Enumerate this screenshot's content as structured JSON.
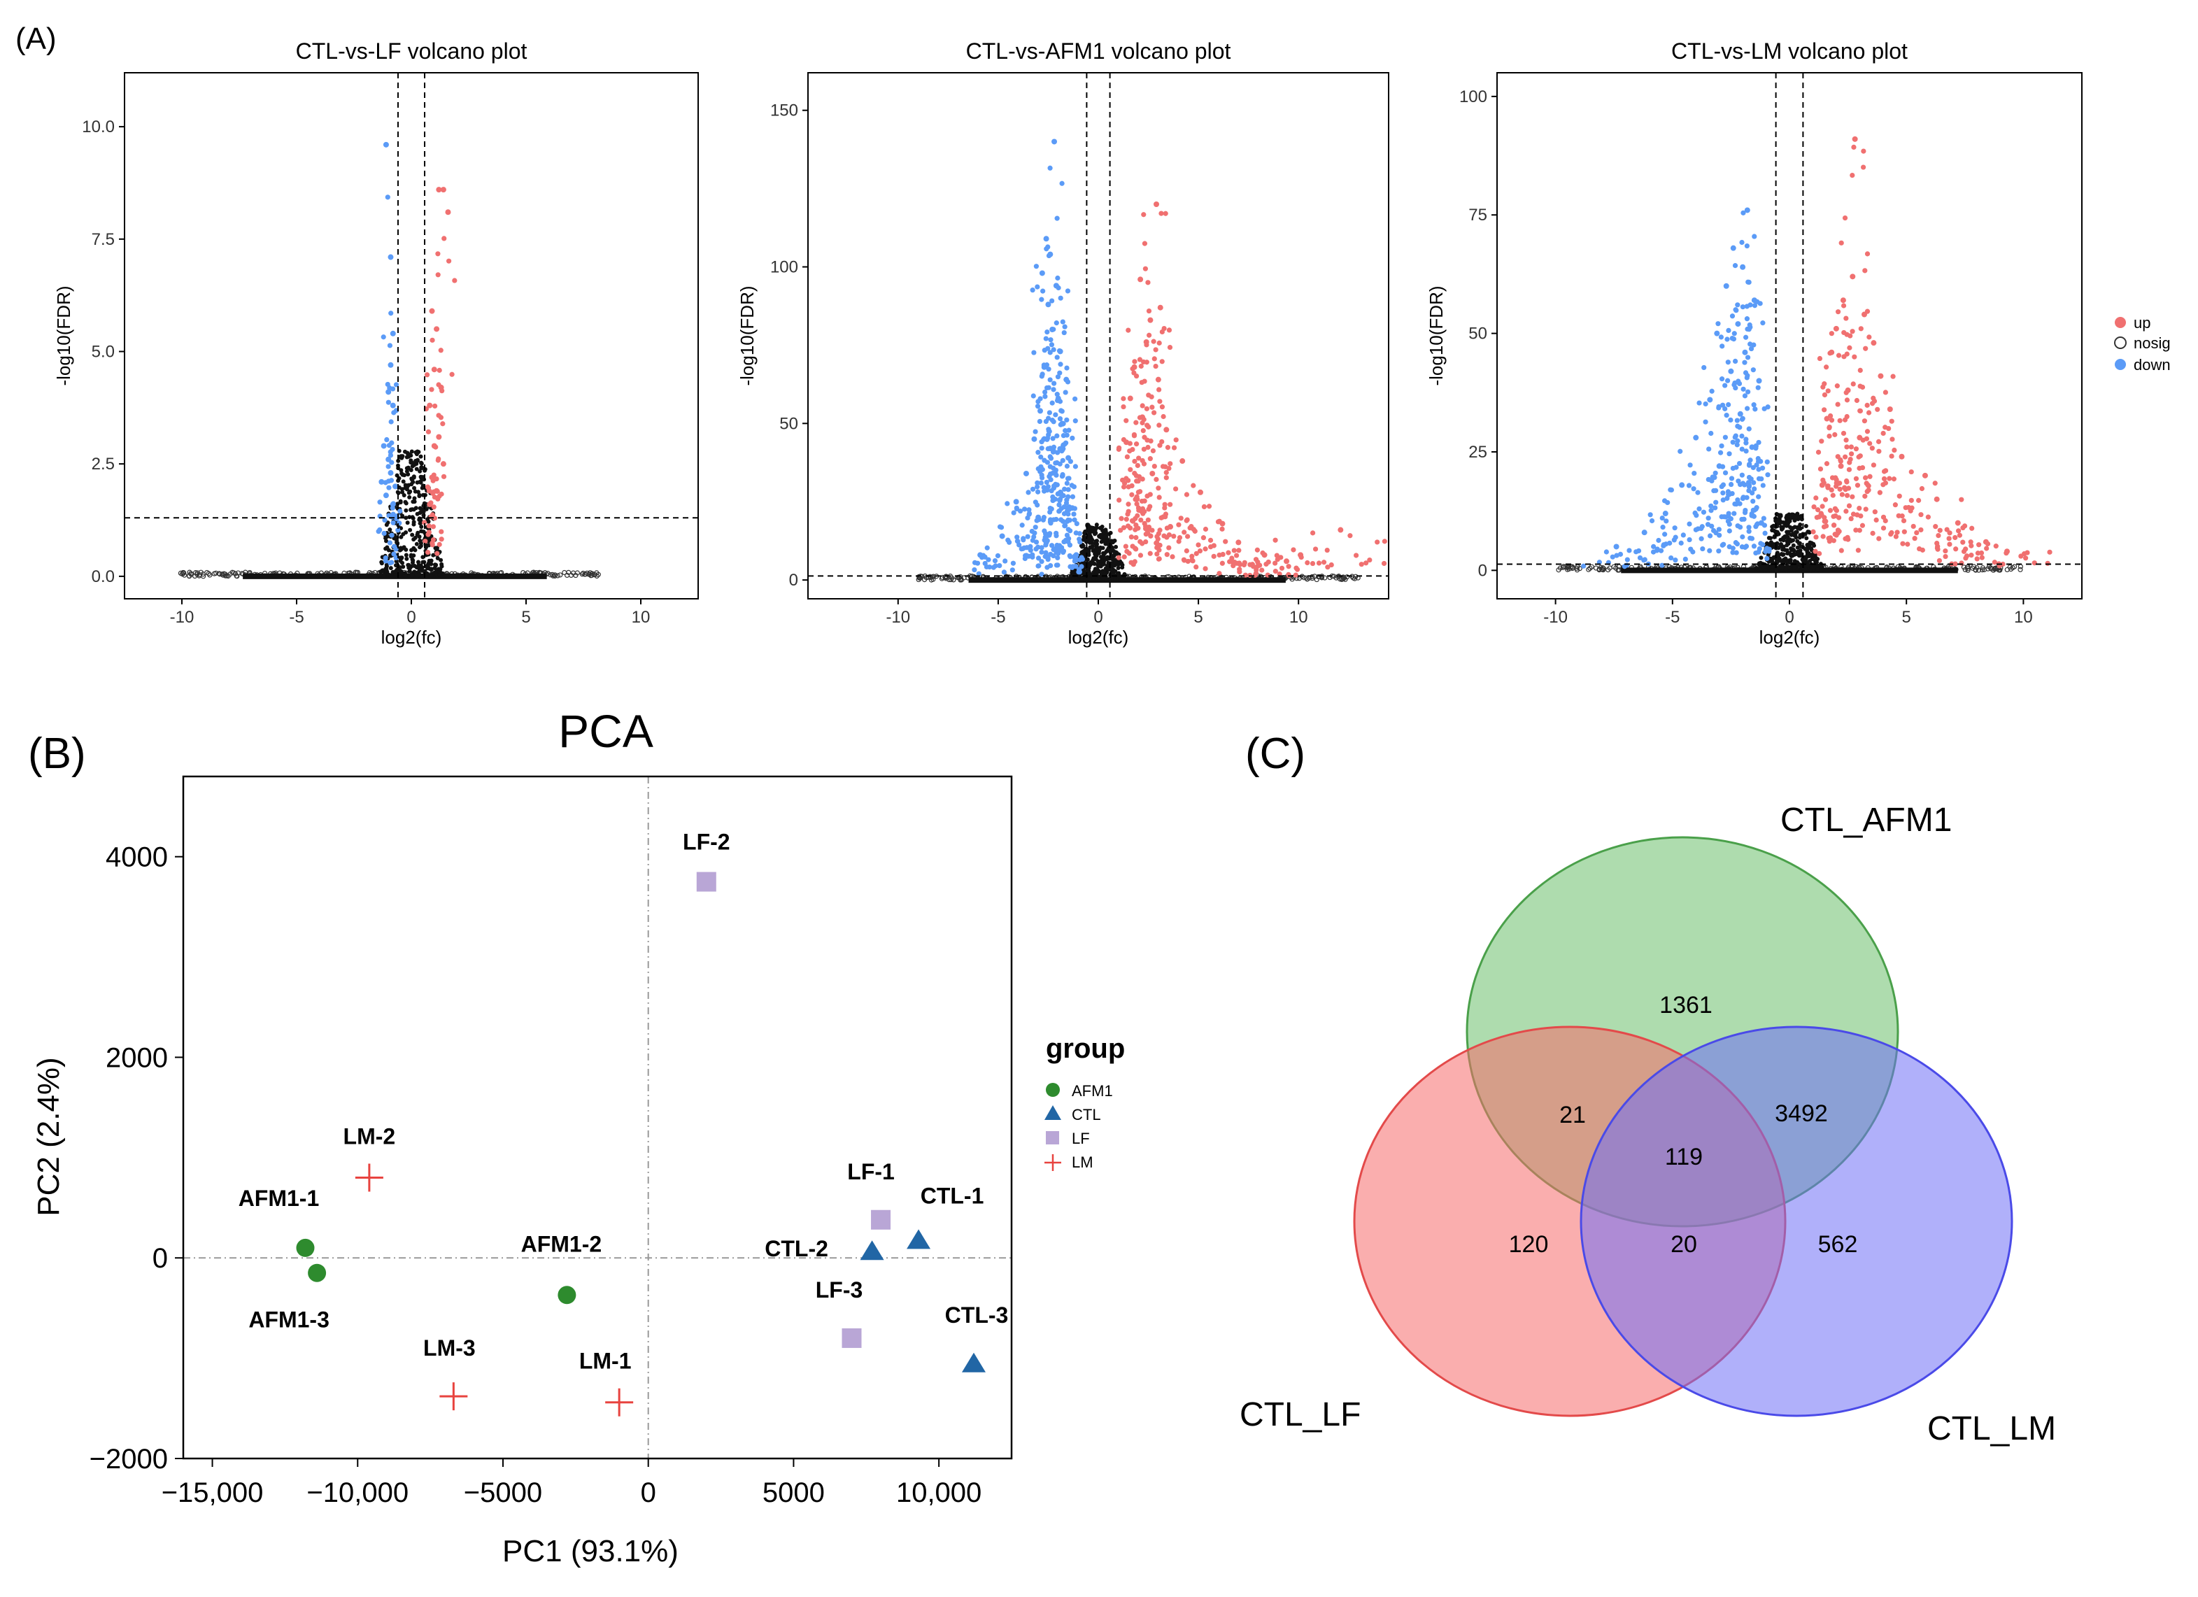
{
  "panel_labels": {
    "a": "(A)",
    "b": "(B)",
    "c": "(C)"
  },
  "colors": {
    "up": "#f07070",
    "down": "#5b9bf7",
    "nosig": "#000000",
    "afm1": "#2e8b2e",
    "ctl": "#2166a5",
    "lf": "#b9a6d6",
    "lm": "#e8433f",
    "venn_afm1": "#8fcf8f",
    "venn_lf": "#f56b6b",
    "venn_lm": "#6f6ff5"
  },
  "volcano_legend": {
    "up": "up",
    "nosig": "nosig",
    "down": "down"
  },
  "chart_data": [
    {
      "type": "scatter",
      "id": "volcano-lf",
      "title": "CTL-vs-LF volcano plot",
      "xlabel": "log2(fc)",
      "ylabel": "-log10(FDR)",
      "xlim": [
        -12.5,
        12.5
      ],
      "ylim": [
        -0.5,
        11.2
      ],
      "xticks": [
        -10,
        -5,
        0,
        5,
        10
      ],
      "yticks": [
        0.0,
        2.5,
        5.0,
        7.5,
        10.0
      ],
      "ytick_labels": [
        "0.0",
        "2.5",
        "5.0",
        "7.5",
        "10.0"
      ],
      "fc_threshold": [
        -0.58,
        0.58
      ],
      "fdr_threshold": 1.3,
      "nosig_xrange": [
        -10.2,
        8.2
      ],
      "nosig_peak": 2.8,
      "down_points": [
        [
          -1.1,
          9.6
        ],
        [
          -0.9,
          7.1
        ],
        [
          -0.8,
          5.4
        ],
        [
          -0.9,
          4.7
        ],
        [
          -1.0,
          4.1
        ],
        [
          -0.8,
          3.8
        ],
        [
          -1.2,
          2.9
        ],
        [
          -1.0,
          2.6
        ],
        [
          -0.9,
          2.3
        ],
        [
          -1.3,
          2.1
        ],
        [
          -0.7,
          2.0
        ],
        [
          -1.1,
          1.8
        ],
        [
          -0.8,
          1.6
        ]
      ],
      "up_points": [
        [
          1.2,
          8.6
        ],
        [
          1.4,
          8.6
        ],
        [
          1.6,
          8.1
        ],
        [
          0.9,
          5.9
        ],
        [
          1.1,
          5.5
        ],
        [
          1.0,
          4.6
        ],
        [
          1.3,
          4.2
        ],
        [
          0.8,
          3.8
        ],
        [
          1.2,
          3.1
        ],
        [
          1.0,
          2.9
        ],
        [
          1.4,
          2.5
        ],
        [
          0.9,
          2.2
        ],
        [
          1.1,
          1.9
        ],
        [
          0.8,
          1.6
        ]
      ]
    },
    {
      "type": "scatter",
      "id": "volcano-afm1",
      "title": "CTL-vs-AFM1 volcano plot",
      "xlabel": "log2(fc)",
      "ylabel": "-log10(FDR)",
      "xlim": [
        -14.5,
        14.5
      ],
      "ylim": [
        -6,
        162
      ],
      "xticks": [
        -10,
        -5,
        0,
        5,
        10
      ],
      "yticks": [
        0,
        50,
        100,
        150
      ],
      "ytick_labels": [
        "0",
        "50",
        "100",
        "150"
      ],
      "fc_threshold": [
        -0.58,
        0.58
      ],
      "fdr_threshold": 1.3,
      "nosig_xrange": [
        -9,
        13
      ],
      "nosig_peak": 18,
      "down_points": [
        [
          -2.2,
          140
        ],
        [
          -2.6,
          109
        ],
        [
          -2.4,
          104
        ],
        [
          -2.8,
          98
        ],
        [
          -2.1,
          94
        ],
        [
          -2.5,
          88
        ],
        [
          -2.3,
          80
        ],
        [
          -1.9,
          73
        ],
        [
          -2.7,
          68
        ],
        [
          -1.6,
          64
        ],
        [
          -2.0,
          58
        ],
        [
          -2.9,
          54
        ],
        [
          -1.8,
          50
        ],
        [
          -3.2,
          45
        ],
        [
          -2.4,
          42
        ],
        [
          -1.5,
          39
        ],
        [
          -3.6,
          34
        ],
        [
          -2.2,
          30
        ],
        [
          -4.1,
          25
        ],
        [
          -1.3,
          23
        ],
        [
          -3.0,
          20
        ],
        [
          -4.8,
          14
        ],
        [
          -2.6,
          12
        ],
        [
          -5.9,
          8
        ],
        [
          -1.1,
          8
        ]
      ],
      "up_points": [
        [
          2.9,
          120
        ],
        [
          2.1,
          96
        ],
        [
          3.1,
          87
        ],
        [
          2.6,
          83
        ],
        [
          2.4,
          76
        ],
        [
          1.8,
          68
        ],
        [
          3.0,
          64
        ],
        [
          1.6,
          58
        ],
        [
          2.2,
          52
        ],
        [
          3.4,
          48
        ],
        [
          1.4,
          44
        ],
        [
          4.2,
          38
        ],
        [
          2.7,
          34
        ],
        [
          5.1,
          28
        ],
        [
          1.9,
          26
        ],
        [
          6.2,
          18
        ],
        [
          3.6,
          17
        ],
        [
          7.0,
          12
        ],
        [
          8.3,
          8
        ],
        [
          12.1,
          16
        ],
        [
          10.1,
          8
        ],
        [
          9.4,
          6
        ]
      ]
    },
    {
      "type": "scatter",
      "id": "volcano-lm",
      "title": "CTL-vs-LM volcano plot",
      "xlabel": "log2(fc)",
      "ylabel": "-log10(FDR)",
      "xlim": [
        -12.5,
        12.5
      ],
      "ylim": [
        -6,
        105
      ],
      "xticks": [
        -10,
        -5,
        0,
        5,
        10
      ],
      "yticks": [
        0,
        25,
        50,
        75,
        100
      ],
      "ytick_labels": [
        "0",
        "25",
        "50",
        "75",
        "100"
      ],
      "fc_threshold": [
        -0.58,
        0.58
      ],
      "fdr_threshold": 1.3,
      "nosig_xrange": [
        -10,
        10
      ],
      "nosig_peak": 12,
      "down_points": [
        [
          -1.8,
          76
        ],
        [
          -2.4,
          68
        ],
        [
          -2.0,
          64
        ],
        [
          -2.7,
          60
        ],
        [
          -1.5,
          57
        ],
        [
          -2.2,
          52
        ],
        [
          -3.1,
          50
        ],
        [
          -1.9,
          46
        ],
        [
          -2.5,
          42
        ],
        [
          -1.3,
          40
        ],
        [
          -3.4,
          36
        ],
        [
          -2.1,
          33
        ],
        [
          -4.0,
          28
        ],
        [
          -1.6,
          26
        ],
        [
          -3.0,
          22
        ],
        [
          -4.6,
          18
        ],
        [
          -2.6,
          16
        ],
        [
          -5.3,
          12
        ],
        [
          -6.2,
          8
        ],
        [
          -7.4,
          5
        ],
        [
          -1.2,
          10
        ]
      ],
      "up_points": [
        [
          2.8,
          91
        ],
        [
          2.7,
          62
        ],
        [
          2.3,
          57
        ],
        [
          3.2,
          54
        ],
        [
          2.0,
          51
        ],
        [
          3.6,
          48
        ],
        [
          1.8,
          46
        ],
        [
          3.9,
          41
        ],
        [
          2.5,
          38
        ],
        [
          4.3,
          34
        ],
        [
          1.6,
          32
        ],
        [
          5.8,
          20
        ],
        [
          3.0,
          28
        ],
        [
          4.8,
          24
        ],
        [
          2.2,
          22
        ],
        [
          6.3,
          15
        ],
        [
          7.2,
          10
        ],
        [
          8.4,
          6
        ],
        [
          9.3,
          4
        ],
        [
          1.4,
          18
        ]
      ]
    },
    {
      "type": "scatter",
      "id": "pca",
      "title": "PCA",
      "xlabel": "PC1 (93.1%)",
      "ylabel": "PC2 (2.4%)",
      "xlim": [
        -16000,
        12500
      ],
      "ylim": [
        -2000,
        4800
      ],
      "xticks": [
        -15000,
        -10000,
        -5000,
        0,
        5000,
        10000
      ],
      "xtick_labels": [
        "−15,000",
        "−10,000",
        "−5000",
        "0",
        "5000",
        "10,000"
      ],
      "yticks": [
        -2000,
        0,
        2000,
        4000
      ],
      "ytick_labels": [
        "−2000",
        "0",
        "2000",
        "4000"
      ],
      "legend_title": "group",
      "groups": [
        "AFM1",
        "CTL",
        "LF",
        "LM"
      ],
      "points": [
        {
          "label": "AFM1-1",
          "group": "AFM1",
          "x": -11800,
          "y": 100
        },
        {
          "label": "AFM1-2",
          "group": "AFM1",
          "x": -2800,
          "y": -370
        },
        {
          "label": "AFM1-3",
          "group": "AFM1",
          "x": -11400,
          "y": -150
        },
        {
          "label": "CTL-1",
          "group": "CTL",
          "x": 9300,
          "y": 180
        },
        {
          "label": "CTL-2",
          "group": "CTL",
          "x": 7700,
          "y": 70
        },
        {
          "label": "CTL-3",
          "group": "CTL",
          "x": 11200,
          "y": -1050
        },
        {
          "label": "LF-1",
          "group": "LF",
          "x": 8000,
          "y": 380
        },
        {
          "label": "LF-2",
          "group": "LF",
          "x": 2000,
          "y": 3750
        },
        {
          "label": "LF-3",
          "group": "LF",
          "x": 7000,
          "y": -800
        },
        {
          "label": "LM-1",
          "group": "LM",
          "x": -1000,
          "y": -1440
        },
        {
          "label": "LM-2",
          "group": "LM",
          "x": -9600,
          "y": 800
        },
        {
          "label": "LM-3",
          "group": "LM",
          "x": -6700,
          "y": -1380
        }
      ]
    },
    {
      "type": "venn",
      "id": "venn",
      "sets": [
        "CTL_AFM1",
        "CTL_LF",
        "CTL_LM"
      ],
      "regions": [
        {
          "sets": [
            "CTL_AFM1"
          ],
          "value": 1361
        },
        {
          "sets": [
            "CTL_LF"
          ],
          "value": 120
        },
        {
          "sets": [
            "CTL_LM"
          ],
          "value": 562
        },
        {
          "sets": [
            "CTL_AFM1",
            "CTL_LF"
          ],
          "value": 21
        },
        {
          "sets": [
            "CTL_AFM1",
            "CTL_LM"
          ],
          "value": 3492
        },
        {
          "sets": [
            "CTL_LF",
            "CTL_LM"
          ],
          "value": 20
        },
        {
          "sets": [
            "CTL_AFM1",
            "CTL_LF",
            "CTL_LM"
          ],
          "value": 119
        }
      ]
    }
  ]
}
